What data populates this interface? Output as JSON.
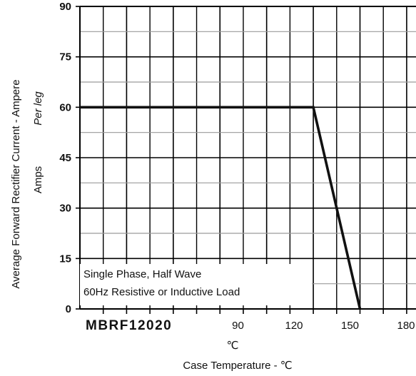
{
  "chart_data": {
    "type": "line",
    "xlabel": "Case Temperature -  ℃",
    "x_unit_label": "℃",
    "ylabel": "Average Forward Rectifier Current - Ampere",
    "ylabel_secondary": "Per leg",
    "ylabel_unit": "Amps",
    "part_number": "MBRF12020",
    "annotation_line1": "Single Phase, Half Wave",
    "annotation_line2": "60Hz Resistive or Inductive Load",
    "xlim": [
      0,
      180
    ],
    "ylim": [
      0,
      90
    ],
    "x_tick_labels": [
      "90",
      "120",
      "150",
      "180"
    ],
    "x_tick_values": [
      90,
      120,
      150,
      180
    ],
    "y_tick_labels": [
      "0",
      "15",
      "30",
      "45",
      "60",
      "75",
      "90"
    ],
    "y_tick_values": [
      0,
      15,
      30,
      45,
      60,
      75,
      90
    ],
    "grid": true,
    "series": [
      {
        "x": [
          0,
          125,
          150
        ],
        "y": [
          60,
          60,
          0
        ],
        "color": "#111111"
      }
    ]
  }
}
